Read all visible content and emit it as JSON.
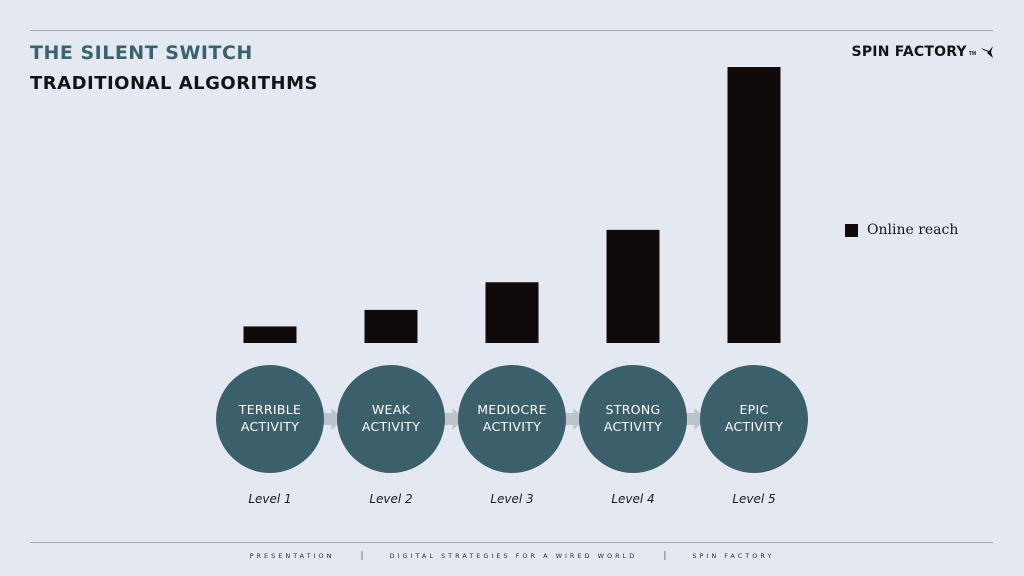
{
  "header": {
    "title": "THE SILENT SWITCH",
    "subtitle": "TRADITIONAL ALGORITHMS"
  },
  "logo": {
    "text": "SPIN FACTORY",
    "tm": "TM",
    "icon": "bird-icon"
  },
  "footer": {
    "items": [
      "PRESENTATION",
      "DIGITAL STRATEGIES FOR A WIRED WORLD",
      "SPIN FACTORY"
    ],
    "separator": "|"
  },
  "colors": {
    "background": "#e4e9f1",
    "accent": "#3c6270",
    "bar": "#110a0a",
    "circle": "#3b5f6b"
  },
  "chart_data": {
    "type": "bar",
    "title": "",
    "xlabel": "",
    "ylabel": "",
    "categories": [
      "Level 1",
      "Level 2",
      "Level 3",
      "Level 4",
      "Level 5"
    ],
    "category_badges": [
      [
        "TERRIBLE",
        "ACTIVITY"
      ],
      [
        "WEAK",
        "ACTIVITY"
      ],
      [
        "MEDIOCRE",
        "ACTIVITY"
      ],
      [
        "STRONG",
        "ACTIVITY"
      ],
      [
        "EPIC",
        "ACTIVITY"
      ]
    ],
    "series": [
      {
        "name": "Online reach",
        "values": [
          6,
          12,
          22,
          41,
          100
        ]
      }
    ],
    "ylim": [
      0,
      100
    ],
    "grid": false,
    "legend_position": "right"
  }
}
